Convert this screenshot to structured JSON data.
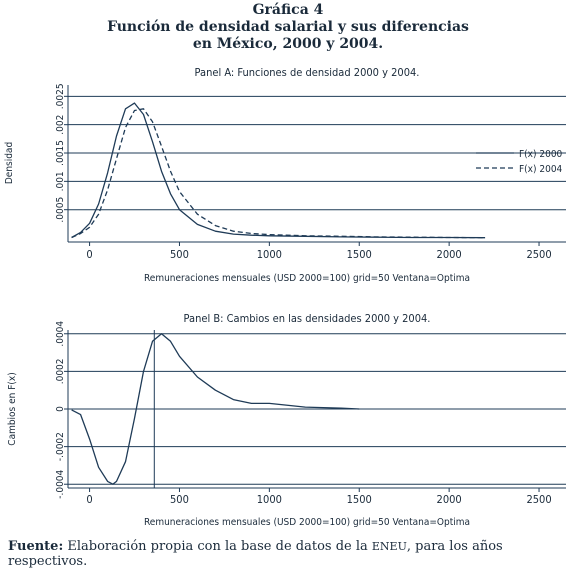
{
  "figure": {
    "label": "Gráfica 4",
    "title_line1": "Función de densidad salarial y sus diferencias",
    "title_line2": "en México, 2000 y 2004."
  },
  "source": {
    "prefix": "Fuente:",
    "text": "Elaboración propia con la base de datos de la",
    "acronym": "ENEU",
    "suffix": ", para los años respectivos."
  },
  "colors": {
    "line": "#1f3b57",
    "grid": "#1f3b57",
    "text": "#1a2a3a"
  },
  "chart_data": [
    {
      "type": "line",
      "title": "Panel A: Funciones de densidad 2000 y 2004.",
      "xlabel": "Remuneraciones mensuales (USD 2000=100) grid=50 Ventana=Optima",
      "ylabel": "Densidad",
      "xlim": [
        -120,
        2650
      ],
      "ylim": [
        -7e-05,
        0.0027
      ],
      "xticks": [
        0,
        500,
        1000,
        1500,
        2000,
        2500
      ],
      "yticks": [
        0.0005,
        0.001,
        0.0015,
        0.002,
        0.0025
      ],
      "ytick_labels": [
        ".0005",
        ".001",
        ".0015",
        ".002",
        ".0025"
      ],
      "grid": "horizontal",
      "legend_position": "right",
      "series": [
        {
          "name": "F(x) 2000",
          "style": "solid",
          "x": [
            -100,
            -50,
            0,
            50,
            100,
            150,
            200,
            250,
            300,
            350,
            400,
            450,
            500,
            600,
            700,
            800,
            900,
            1000,
            1200,
            1400,
            1600,
            1800,
            2000,
            2200
          ],
          "y": [
            1e-05,
            0.0001,
            0.00026,
            0.0006,
            0.00115,
            0.0018,
            0.00228,
            0.00238,
            0.00218,
            0.0017,
            0.00118,
            0.00078,
            0.0005,
            0.00024,
            0.00012,
            7e-05,
            5e-05,
            4e-05,
            3e-05,
            2e-05,
            1.5e-05,
            1e-05,
            1e-05,
            5e-06
          ]
        },
        {
          "name": "F(x) 2004",
          "style": "dashed",
          "x": [
            -100,
            -50,
            0,
            50,
            100,
            150,
            200,
            250,
            300,
            350,
            400,
            450,
            500,
            600,
            700,
            800,
            900,
            1000,
            1200,
            1400,
            1600,
            1800,
            2000,
            2200
          ],
          "y": [
            1e-05,
            8e-05,
            0.00019,
            0.00042,
            0.00085,
            0.0014,
            0.00195,
            0.00225,
            0.00228,
            0.00205,
            0.00162,
            0.00118,
            0.00082,
            0.00042,
            0.00022,
            0.00012,
            8e-05,
            6e-05,
            4e-05,
            3e-05,
            2e-05,
            1.5e-05,
            1e-05,
            5e-06
          ]
        }
      ]
    },
    {
      "type": "line",
      "title": "Panel B: Cambios en las densidades 2000 y 2004.",
      "xlabel": "Remuneraciones mensuales (USD 2000=100) grid=50 Ventana=Optima",
      "ylabel": "Cambios en F(x)",
      "xlim": [
        -120,
        2650
      ],
      "ylim": [
        -0.00042,
        0.00042
      ],
      "xticks": [
        0,
        500,
        1000,
        1500,
        2000,
        2500
      ],
      "yticks": [
        -0.0004,
        -0.0002,
        0,
        0.0002,
        0.0004
      ],
      "ytick_labels": [
        "-.0004",
        "-.0002",
        "0",
        ".0002",
        ".0004"
      ],
      "grid": "horizontal",
      "vline_x": 360,
      "series": [
        {
          "style": "solid",
          "x": [
            -100,
            -50,
            0,
            50,
            100,
            130,
            150,
            200,
            250,
            300,
            350,
            400,
            450,
            500,
            600,
            700,
            800,
            900,
            1000,
            1200,
            1400,
            1500
          ],
          "y": [
            -5e-06,
            -3e-05,
            -0.00016,
            -0.00031,
            -0.000385,
            -0.0004,
            -0.000385,
            -0.00028,
            -5e-05,
            0.0002,
            0.00036,
            0.0004,
            0.00036,
            0.00028,
            0.00017,
            0.0001,
            5e-05,
            3e-05,
            3e-05,
            1e-05,
            5e-06,
            0.0
          ]
        }
      ]
    }
  ]
}
